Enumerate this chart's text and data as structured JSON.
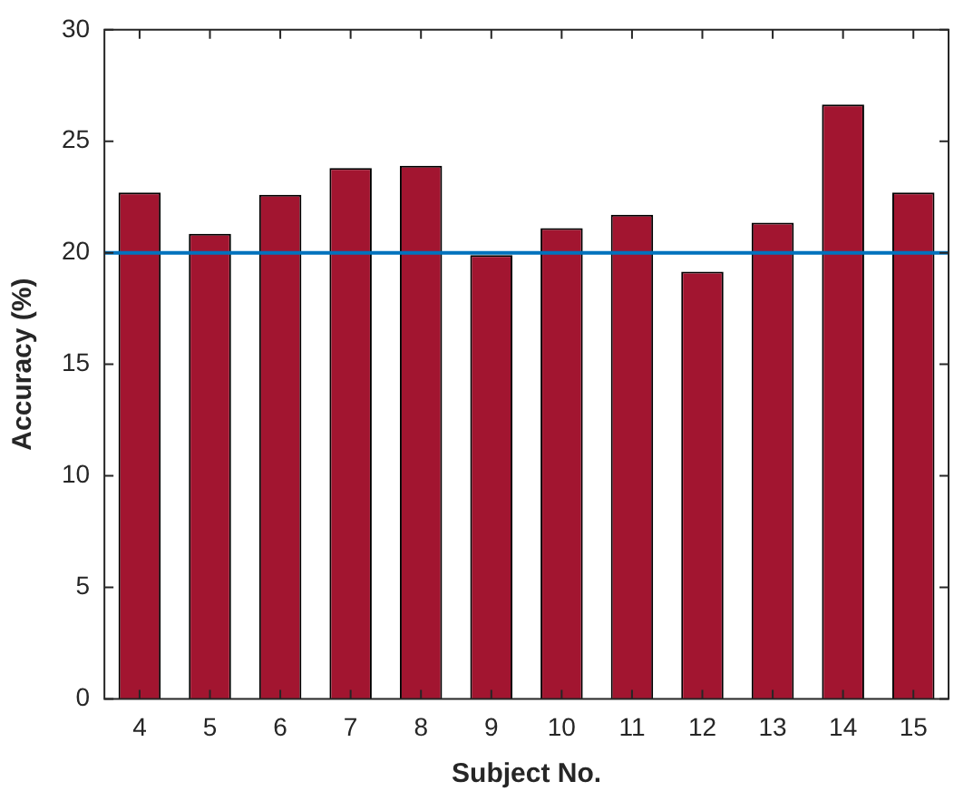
{
  "chart_data": {
    "type": "bar",
    "xlabel": "Subject No.",
    "ylabel": "Accuracy (%)",
    "categories": [
      "4",
      "5",
      "6",
      "7",
      "8",
      "9",
      "10",
      "11",
      "12",
      "13",
      "14",
      "15"
    ],
    "values": [
      22.7,
      20.85,
      22.6,
      23.8,
      23.9,
      19.9,
      21.1,
      21.7,
      19.15,
      21.35,
      26.65,
      22.7
    ],
    "color": "#a21530",
    "ylim": [
      0,
      30
    ],
    "yticks": [
      0,
      5,
      10,
      15,
      20,
      25,
      30
    ],
    "grid": false,
    "legend": false,
    "ref_lines": [
      {
        "axis": "y",
        "value": 20,
        "color": "#0072bd"
      }
    ]
  }
}
